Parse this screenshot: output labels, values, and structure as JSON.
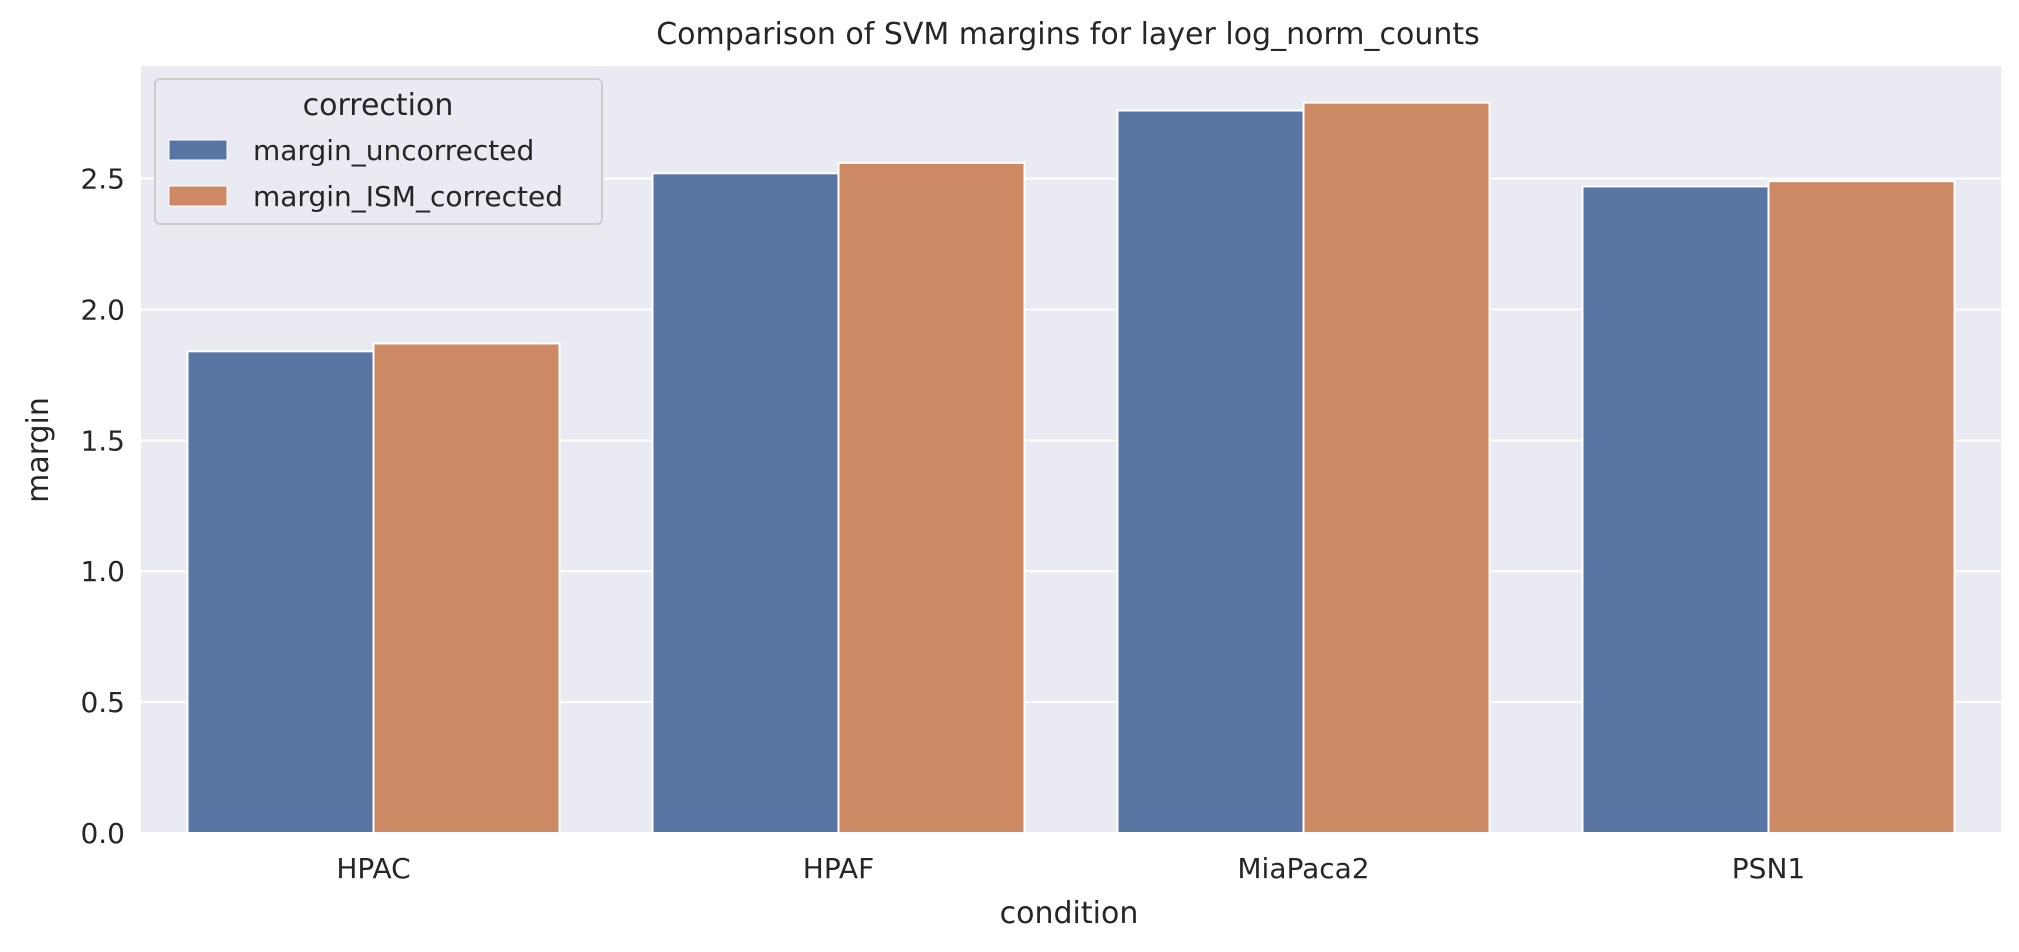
{
  "chart_data": {
    "type": "bar",
    "title": "Comparison of SVM margins for layer log_norm_counts",
    "xlabel": "condition",
    "ylabel": "margin",
    "categories": [
      "HPAC",
      "HPAF",
      "MiaPaca2",
      "PSN1"
    ],
    "series": [
      {
        "name": "margin_uncorrected",
        "values": [
          1.84,
          2.52,
          2.76,
          2.47
        ],
        "color": "#5975a4"
      },
      {
        "name": "margin_ISM_corrected",
        "values": [
          1.87,
          2.56,
          2.79,
          2.49
        ],
        "color": "#cc8963"
      }
    ],
    "yticks": [
      "0.0",
      "0.5",
      "1.0",
      "1.5",
      "2.0",
      "2.5"
    ],
    "ylim": [
      0,
      2.93
    ],
    "grid": true,
    "legend": {
      "title": "correction",
      "placement": "top-left"
    },
    "colors": {
      "plot_background": "#eaeaf2",
      "grid": "#ffffff"
    }
  }
}
